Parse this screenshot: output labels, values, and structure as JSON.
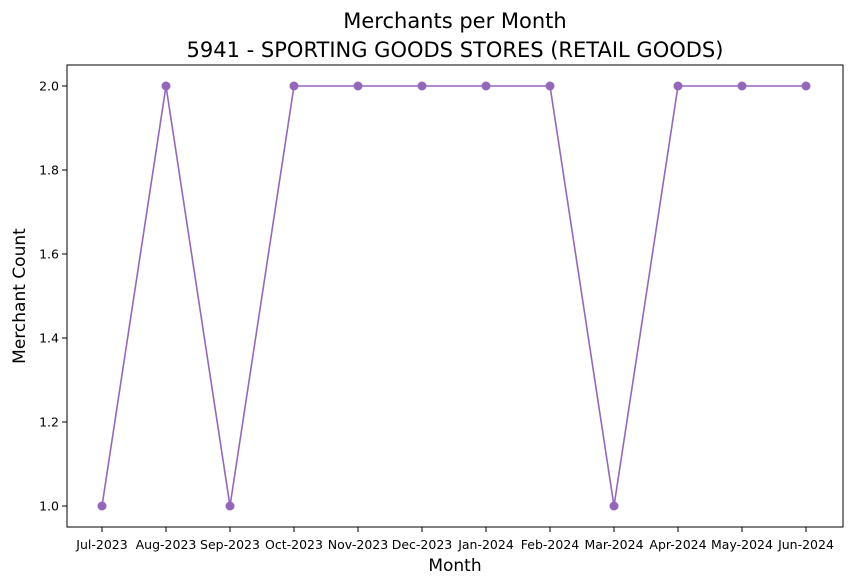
{
  "chart_data": {
    "type": "line",
    "title": "Merchants per Month",
    "subtitle": "5941 - SPORTING GOODS STORES (RETAIL GOODS)",
    "xlabel": "Month",
    "ylabel": "Merchant Count",
    "categories": [
      "Jul-2023",
      "Aug-2023",
      "Sep-2023",
      "Oct-2023",
      "Nov-2023",
      "Dec-2023",
      "Jan-2024",
      "Feb-2024",
      "Mar-2024",
      "Apr-2024",
      "May-2024",
      "Jun-2024"
    ],
    "series": [
      {
        "values": [
          1,
          2,
          1,
          2,
          2,
          2,
          2,
          2,
          1,
          2,
          2,
          2
        ],
        "color": "#9467bd"
      }
    ],
    "ylim": [
      0.95,
      2.05
    ],
    "yticks": [
      "1.0",
      "1.2",
      "1.4",
      "1.6",
      "1.8",
      "2.0"
    ],
    "grid": false,
    "legend": "none"
  }
}
